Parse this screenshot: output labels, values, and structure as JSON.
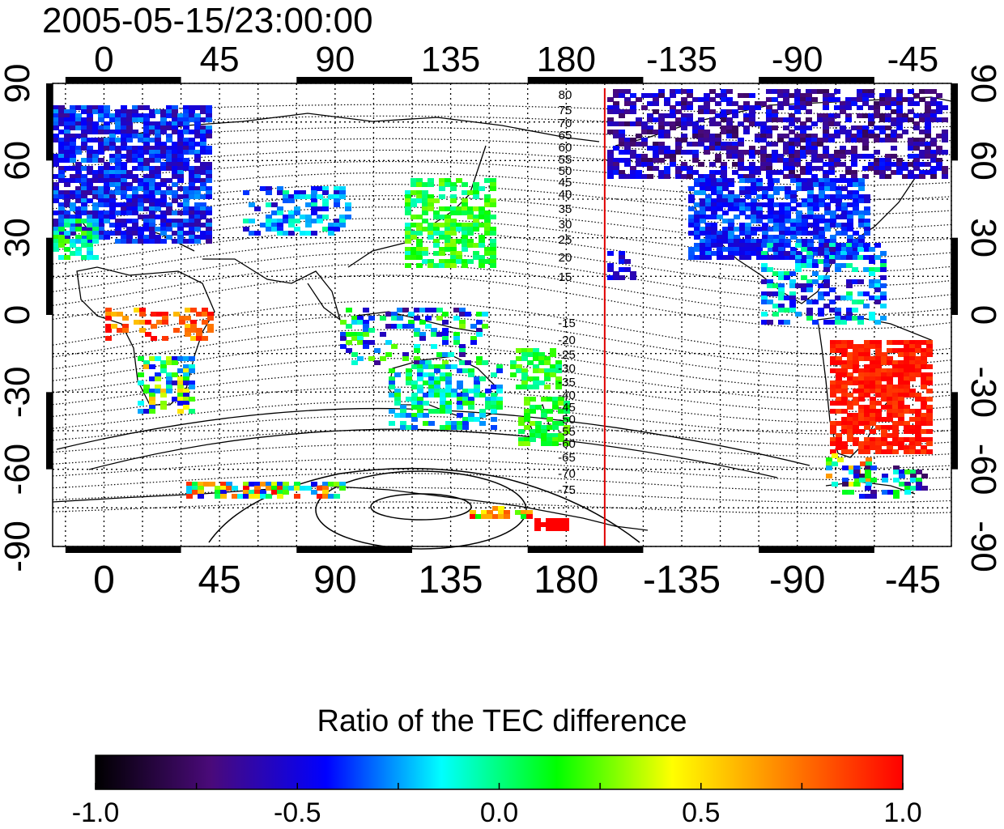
{
  "title": "2005-05-15/23:00:00",
  "lon_ticks": [
    "0",
    "45",
    "90",
    "135",
    "180",
    "-135",
    "-90",
    "-45"
  ],
  "lon_tick_values": [
    0,
    45,
    90,
    135,
    180,
    225,
    270,
    315
  ],
  "lat_ticks_left": [
    "90",
    "60",
    "30",
    "0",
    "-30",
    "-60",
    "-90"
  ],
  "lat_ticks_right": [
    "90",
    "60",
    "30",
    "0",
    "-30",
    "-60",
    "-90"
  ],
  "lat_tick_values": [
    90,
    60,
    30,
    0,
    -30,
    -60,
    -90
  ],
  "contour_labels_north": [
    "80",
    "75",
    "70",
    "65",
    "60",
    "55",
    "50",
    "45",
    "40",
    "35",
    "30",
    "25",
    "20",
    "15"
  ],
  "contour_labels_south": [
    "-15",
    "-20",
    "-25",
    "-30",
    "-35",
    "-40",
    "-45",
    "-50",
    "-55",
    "-60",
    "-65",
    "-70",
    "-75"
  ],
  "colorbar": {
    "title": "Ratio of the TEC difference",
    "min": -1.0,
    "max": 1.0,
    "tick_labels": [
      "-1.0",
      "-0.5",
      "0.0",
      "0.5",
      "1.0"
    ],
    "tick_values": [
      -1.0,
      -0.5,
      0.0,
      0.5,
      1.0
    ],
    "colors": [
      "#000000",
      "#4a0a7a",
      "#0000ff",
      "#00ffff",
      "#00ff00",
      "#ffff00",
      "#ff8000",
      "#ff0000"
    ]
  },
  "terminator_line": {
    "longitude": 195,
    "color": "#e00000"
  },
  "lon_range": [
    -20,
    330
  ],
  "lat_range": [
    -90,
    90
  ]
}
